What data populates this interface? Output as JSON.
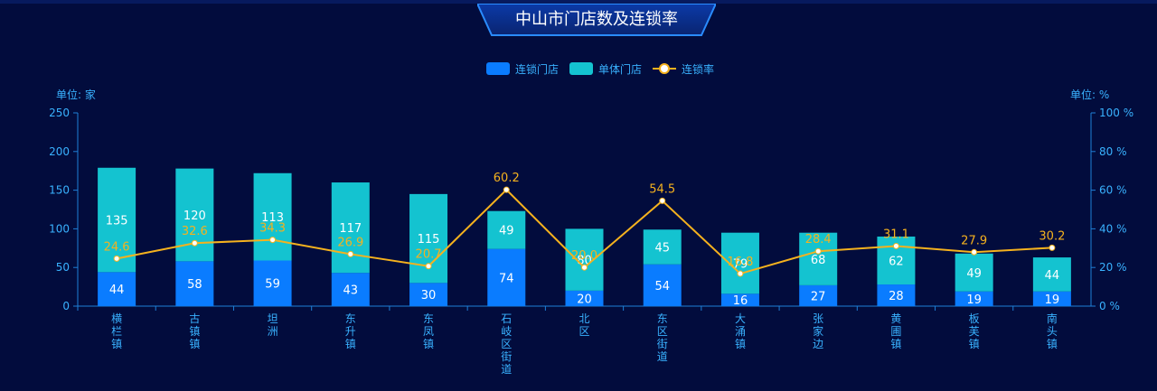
{
  "chart_data": {
    "type": "bar",
    "title": "中山市门店数及连锁率",
    "categories": [
      "横栏镇",
      "古镇镇",
      "坦洲",
      "东升镇",
      "东凤镇",
      "石岐区街道",
      "北区",
      "东区街道",
      "大涌镇",
      "张家边",
      "黄圃镇",
      "板芙镇",
      "南头镇"
    ],
    "series": [
      {
        "name": "连锁门店",
        "type": "bar",
        "stack": "stores",
        "color": "#0a7cff",
        "values": [
          44,
          58,
          59,
          43,
          30,
          74,
          20,
          54,
          16,
          27,
          28,
          19,
          19
        ]
      },
      {
        "name": "单体门店",
        "type": "bar",
        "stack": "stores",
        "color": "#14c3d0",
        "values": [
          135,
          120,
          113,
          117,
          115,
          49,
          80,
          45,
          79,
          68,
          62,
          49,
          44
        ]
      },
      {
        "name": "连锁率",
        "type": "line",
        "axis": "right",
        "color": "#f5b21e",
        "values": [
          24.6,
          32.6,
          34.3,
          26.9,
          20.7,
          60.2,
          20.0,
          54.5,
          16.8,
          28.4,
          31.1,
          27.9,
          30.2
        ]
      }
    ],
    "y_left": {
      "unit_label": "单位: 家",
      "min": 0,
      "max": 250,
      "ticks": [
        "0",
        "50",
        "100",
        "150",
        "200",
        "250"
      ]
    },
    "y_right": {
      "unit_label": "单位: %",
      "min": 0,
      "max": 100,
      "ticks": [
        "0 %",
        "20 %",
        "40 %",
        "60 %",
        "80 %",
        "100 %"
      ]
    },
    "legend": {
      "position": "top-center"
    },
    "grid": false
  }
}
